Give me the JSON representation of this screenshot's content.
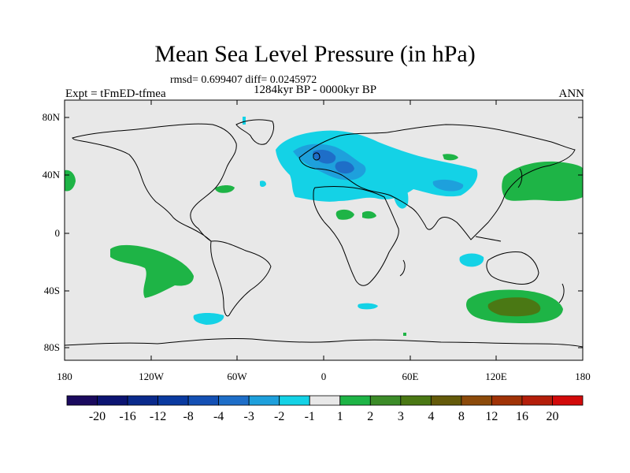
{
  "title": "Mean Sea Level Pressure (in hPa)",
  "stats": "rmsd= 0.699407 diff= 0.0245972",
  "period": "1284kyr BP - 0000kyr BP",
  "experiment": "Expt = tFmED-tfmea",
  "season": "ANN",
  "lat_ticks": [
    "80N",
    "40N",
    "0",
    "40S",
    "80S"
  ],
  "lon_ticks": [
    "180",
    "120W",
    "60W",
    "0",
    "60E",
    "120E",
    "180"
  ],
  "colorbar": {
    "labels": [
      "-20",
      "-16",
      "-12",
      "-8",
      "-4",
      "-3",
      "-2",
      "-1",
      "1",
      "2",
      "3",
      "4",
      "8",
      "12",
      "16",
      "20"
    ],
    "colors": [
      "#1a0a5e",
      "#0c1472",
      "#0a2a8c",
      "#0a3aa0",
      "#1450b4",
      "#1e6ec8",
      "#1ea0dc",
      "#14d2e6",
      "#e8e8e8",
      "#1eb446",
      "#3c8c28",
      "#4a7814",
      "#645a0a",
      "#8c4a0a",
      "#a03206",
      "#b41e0a",
      "#d20a0a"
    ]
  },
  "colors": {
    "background": "#e8e8e8",
    "cyan": "#14d2e6",
    "light_blue": "#1ea0dc",
    "mid_blue": "#1e6ec8",
    "green": "#1eb446",
    "dark_green": "#4a7814"
  }
}
